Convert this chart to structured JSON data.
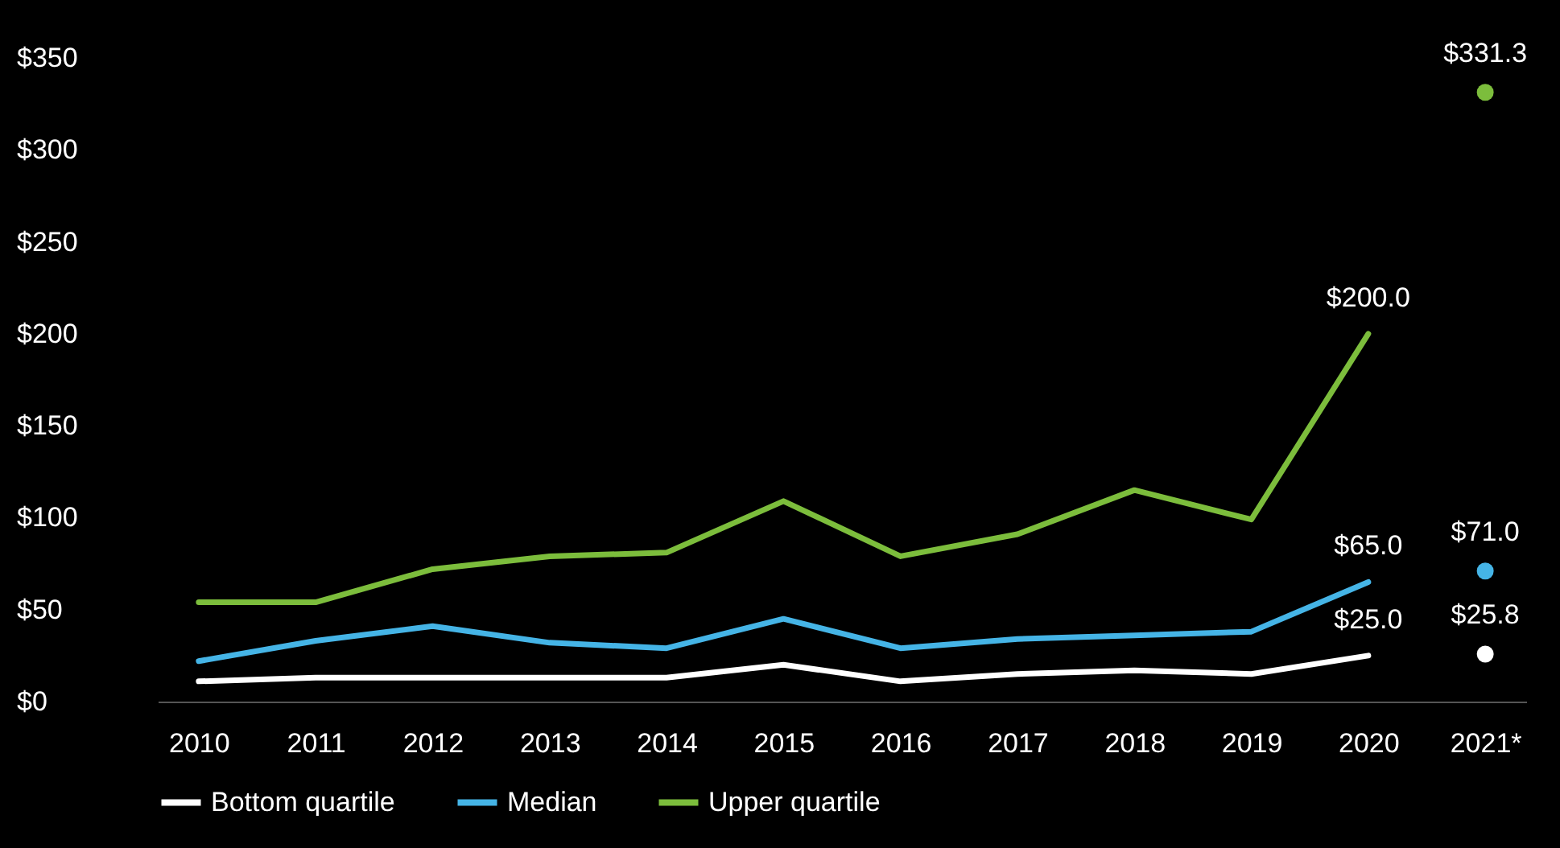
{
  "chart_data": {
    "type": "line",
    "categories": [
      "2010",
      "2011",
      "2012",
      "2013",
      "2014",
      "2015",
      "2016",
      "2017",
      "2018",
      "2019",
      "2020",
      "2021*"
    ],
    "ylim": [
      0,
      350
    ],
    "yticks": [
      {
        "value": 0,
        "label": "$0"
      },
      {
        "value": 50,
        "label": "$50"
      },
      {
        "value": 100,
        "label": "$100"
      },
      {
        "value": 150,
        "label": "$150"
      },
      {
        "value": 200,
        "label": "$200"
      },
      {
        "value": 250,
        "label": "$250"
      },
      {
        "value": 300,
        "label": "$300"
      },
      {
        "value": 350,
        "label": "$350"
      }
    ],
    "grid": false,
    "legend": "bottom",
    "series": [
      {
        "name": "Bottom quartile",
        "color": "#ffffff",
        "values": [
          11,
          13,
          13,
          13,
          13,
          20,
          11,
          15,
          17,
          15,
          25.0,
          null
        ],
        "value_labels": [
          null,
          null,
          null,
          null,
          null,
          null,
          null,
          null,
          null,
          null,
          "$25.0",
          null
        ]
      },
      {
        "name": "Median",
        "color": "#45b4e6",
        "values": [
          22,
          33,
          41,
          32,
          29,
          45,
          29,
          34,
          36,
          38,
          65.0,
          null
        ],
        "value_labels": [
          null,
          null,
          null,
          null,
          null,
          null,
          null,
          null,
          null,
          null,
          "$65.0",
          null
        ]
      },
      {
        "name": "Upper quartile",
        "color": "#7cbd3c",
        "values": [
          54,
          54,
          72,
          79,
          81,
          109,
          79,
          91,
          115,
          99,
          200.0,
          null
        ],
        "value_labels": [
          null,
          null,
          null,
          null,
          null,
          null,
          null,
          null,
          null,
          null,
          "$200.0",
          null
        ]
      },
      {
        "type": "scatter",
        "color": "#ffffff",
        "values": [
          null,
          null,
          null,
          null,
          null,
          null,
          null,
          null,
          null,
          null,
          null,
          25.8
        ],
        "value_labels": [
          null,
          null,
          null,
          null,
          null,
          null,
          null,
          null,
          null,
          null,
          null,
          "$25.8"
        ]
      },
      {
        "type": "scatter",
        "color": "#45b4e6",
        "values": [
          null,
          null,
          null,
          null,
          null,
          null,
          null,
          null,
          null,
          null,
          null,
          71.0
        ],
        "value_labels": [
          null,
          null,
          null,
          null,
          null,
          null,
          null,
          null,
          null,
          null,
          null,
          "$71.0"
        ]
      },
      {
        "type": "scatter",
        "color": "#7cbd3c",
        "values": [
          null,
          null,
          null,
          null,
          null,
          null,
          null,
          null,
          null,
          null,
          null,
          331.3
        ],
        "value_labels": [
          null,
          null,
          null,
          null,
          null,
          null,
          null,
          null,
          null,
          null,
          null,
          "$331.3"
        ]
      }
    ]
  }
}
